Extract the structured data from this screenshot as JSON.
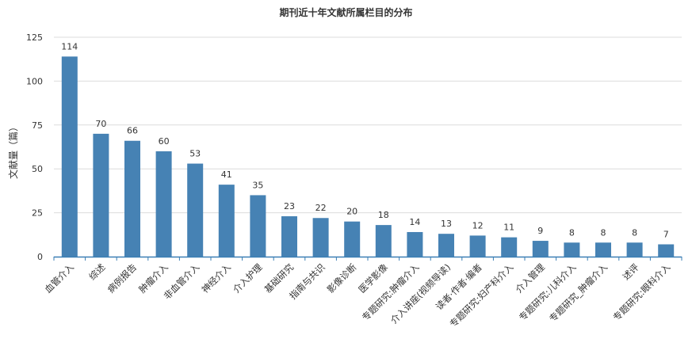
{
  "chart_data": {
    "type": "bar",
    "title": "期刊近十年文献所属栏目的分布",
    "ylabel": "文献量（篇）",
    "xlabel": "",
    "ylim": [
      0,
      125
    ],
    "yticks": [
      0,
      25,
      50,
      75,
      100,
      125
    ],
    "grid": true,
    "categories": [
      "血管介入",
      "综述",
      "病例报告",
      "肿瘤介入",
      "非血管介入",
      "神经介入",
      "介入护理",
      "基础研究",
      "指南与共识",
      "影像诊断",
      "医学影像",
      "专题研究:肿瘤介入",
      "介入讲座(视频导读)",
      "读者·作者·编者",
      "专题研究:妇产科介入",
      "介入管理",
      "专题研究:儿科介入",
      "专题研究_肿瘤介入",
      "述评",
      "专题研究:眼科介入"
    ],
    "values": [
      114,
      70,
      66,
      60,
      53,
      41,
      35,
      23,
      22,
      20,
      18,
      14,
      13,
      12,
      11,
      9,
      8,
      8,
      8,
      7
    ],
    "colors": {
      "bar": "#4682b4",
      "axis": "#3b7fb5",
      "grid": "#dcdcdc"
    }
  }
}
